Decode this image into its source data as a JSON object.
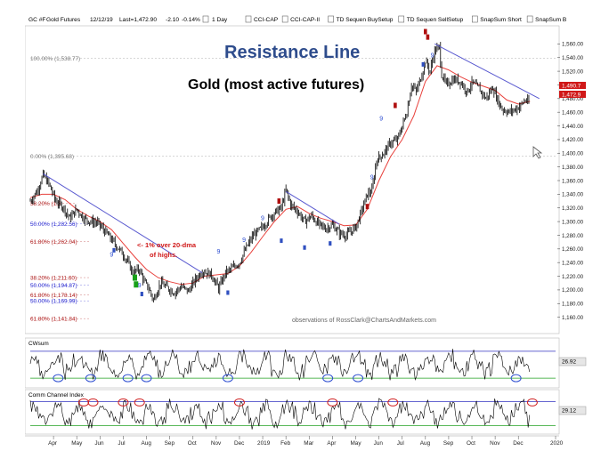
{
  "header": {
    "symbol": "GC #F",
    "name": "Gold Futures",
    "date": "12/12/19",
    "last": "Last=1,472.90",
    "change": "-2.10",
    "change_pct": "-0.14%",
    "interval": "1 Day",
    "studies": [
      "CCI-CAP",
      "CCI-CAP-II",
      "TD Sequen BuySetup",
      "TD Sequen SellSetup",
      "SnapSum Short",
      "SnapSum B"
    ]
  },
  "colors": {
    "price": "#000000",
    "ma": "#e8413c",
    "trend": "#5a5ad0",
    "fib": "#b02020",
    "fib_blue": "#2a2ad0",
    "title": "#2e4c8c",
    "osc": "#000000",
    "band": "#3030c0",
    "green_line": "#20a020",
    "circle_blue": "#2a4bd0",
    "circle_red": "#d02020",
    "sell_marker": "#b01010",
    "buy_marker": "#3050c0",
    "green_marker": "#18a018"
  },
  "chart_data": {
    "type": "candlestick",
    "title": "Resistance Line",
    "subtitle": "Gold (most active futures)",
    "annotation": "<- 1% over 20-dma of highs.",
    "watermark": "observations of RossClark@ChartsAndMarkets.com",
    "ylim": [
      1140,
      1580
    ],
    "y_ticks": [
      1160,
      1180,
      1200,
      1220,
      1240,
      1260,
      1280,
      1300,
      1320,
      1340,
      1360,
      1380,
      1400,
      1420,
      1440,
      1460,
      1480,
      1500,
      1520,
      1540,
      1560
    ],
    "price_flags": [
      {
        "value": "1,490.7",
        "color": "#d01818"
      },
      {
        "value": "1,472.9",
        "color": "#d01818"
      }
    ],
    "x_labels": [
      "Apr",
      "May",
      "Jun",
      "Jul",
      "Aug",
      "Sep",
      "Oct",
      "Nov",
      "Dec",
      "2019",
      "Feb",
      "Mar",
      "Apr",
      "May",
      "Jun",
      "Jul",
      "Aug",
      "Sep",
      "Oct",
      "Nov",
      "Dec",
      "2020"
    ],
    "x_label_months": [
      1,
      2,
      3,
      4,
      5,
      6,
      7,
      8,
      9,
      10,
      11,
      12,
      13,
      14,
      15,
      16,
      17,
      18,
      19,
      20,
      21,
      22.6
    ],
    "price_keypoints": [
      [
        0.0,
        1330
      ],
      [
        0.3,
        1345
      ],
      [
        0.55,
        1368
      ],
      [
        0.8,
        1355
      ],
      [
        1.1,
        1330
      ],
      [
        1.4,
        1322
      ],
      [
        1.7,
        1305
      ],
      [
        2.0,
        1318
      ],
      [
        2.3,
        1305
      ],
      [
        2.6,
        1300
      ],
      [
        2.9,
        1298
      ],
      [
        3.3,
        1282
      ],
      [
        3.7,
        1265
      ],
      [
        4.0,
        1252
      ],
      [
        4.2,
        1240
      ],
      [
        4.4,
        1226
      ],
      [
        4.7,
        1230
      ],
      [
        4.9,
        1212
      ],
      [
        5.1,
        1202
      ],
      [
        5.3,
        1185
      ],
      [
        5.6,
        1210
      ],
      [
        5.9,
        1203
      ],
      [
        6.2,
        1196
      ],
      [
        6.5,
        1205
      ],
      [
        6.8,
        1198
      ],
      [
        7.1,
        1215
      ],
      [
        7.4,
        1228
      ],
      [
        7.8,
        1222
      ],
      [
        8.1,
        1202
      ],
      [
        8.4,
        1225
      ],
      [
        8.7,
        1232
      ],
      [
        9.0,
        1240
      ],
      [
        9.3,
        1262
      ],
      [
        9.6,
        1280
      ],
      [
        10.0,
        1292
      ],
      [
        10.4,
        1310
      ],
      [
        10.8,
        1320
      ],
      [
        11.0,
        1346
      ],
      [
        11.2,
        1325
      ],
      [
        11.5,
        1315
      ],
      [
        11.8,
        1300
      ],
      [
        12.1,
        1308
      ],
      [
        12.4,
        1296
      ],
      [
        12.7,
        1290
      ],
      [
        13.0,
        1295
      ],
      [
        13.3,
        1283
      ],
      [
        13.6,
        1280
      ],
      [
        14.0,
        1292
      ],
      [
        14.2,
        1310
      ],
      [
        14.5,
        1340
      ],
      [
        14.7,
        1345
      ],
      [
        14.9,
        1390
      ],
      [
        15.2,
        1400
      ],
      [
        15.5,
        1415
      ],
      [
        15.8,
        1420
      ],
      [
        16.0,
        1440
      ],
      [
        16.2,
        1460
      ],
      [
        16.4,
        1500
      ],
      [
        16.6,
        1490
      ],
      [
        16.8,
        1510
      ],
      [
        17.0,
        1535
      ],
      [
        17.2,
        1520
      ],
      [
        17.4,
        1550
      ],
      [
        17.6,
        1555
      ],
      [
        17.7,
        1515
      ],
      [
        17.9,
        1500
      ],
      [
        18.2,
        1508
      ],
      [
        18.5,
        1505
      ],
      [
        18.8,
        1490
      ],
      [
        19.0,
        1503
      ],
      [
        19.3,
        1495
      ],
      [
        19.6,
        1480
      ],
      [
        19.9,
        1496
      ],
      [
        20.1,
        1478
      ],
      [
        20.3,
        1465
      ],
      [
        20.6,
        1460
      ],
      [
        20.9,
        1465
      ],
      [
        21.1,
        1470
      ],
      [
        21.3,
        1478
      ],
      [
        21.5,
        1472
      ]
    ],
    "ma_keypoints": [
      [
        0.0,
        1335
      ],
      [
        0.5,
        1340
      ],
      [
        1.0,
        1340
      ],
      [
        1.5,
        1332
      ],
      [
        2.0,
        1318
      ],
      [
        2.5,
        1308
      ],
      [
        3.0,
        1300
      ],
      [
        3.5,
        1288
      ],
      [
        4.0,
        1268
      ],
      [
        4.5,
        1248
      ],
      [
        5.0,
        1230
      ],
      [
        5.5,
        1218
      ],
      [
        6.0,
        1212
      ],
      [
        6.5,
        1208
      ],
      [
        7.0,
        1210
      ],
      [
        7.5,
        1220
      ],
      [
        8.0,
        1222
      ],
      [
        8.5,
        1224
      ],
      [
        9.0,
        1235
      ],
      [
        9.5,
        1255
      ],
      [
        10.0,
        1278
      ],
      [
        10.5,
        1300
      ],
      [
        11.0,
        1318
      ],
      [
        11.5,
        1322
      ],
      [
        12.0,
        1312
      ],
      [
        12.5,
        1305
      ],
      [
        13.0,
        1300
      ],
      [
        13.5,
        1294
      ],
      [
        14.0,
        1295
      ],
      [
        14.5,
        1318
      ],
      [
        15.0,
        1360
      ],
      [
        15.5,
        1395
      ],
      [
        16.0,
        1420
      ],
      [
        16.5,
        1455
      ],
      [
        17.0,
        1505
      ],
      [
        17.5,
        1528
      ],
      [
        18.0,
        1522
      ],
      [
        18.5,
        1512
      ],
      [
        19.0,
        1504
      ],
      [
        19.5,
        1498
      ],
      [
        20.0,
        1492
      ],
      [
        20.5,
        1478
      ],
      [
        21.0,
        1472
      ],
      [
        21.5,
        1476
      ]
    ],
    "resistance_lines": [
      {
        "from": [
          0.55,
          1370
        ],
        "to": [
          7.4,
          1225
        ]
      },
      {
        "from": [
          11.0,
          1344
        ],
        "to": [
          13.3,
          1296
        ]
      },
      {
        "from": [
          17.4,
          1560
        ],
        "to": [
          21.9,
          1480
        ]
      }
    ],
    "fib_levels": [
      {
        "label": "100.00% (1,538.77)",
        "value": 1538.77,
        "color": "#777777",
        "x0": 0,
        "x1": 22.6
      },
      {
        "label": "0.00% (1,395.68)",
        "value": 1395.68,
        "color": "#777777",
        "x0": 0,
        "x1": 22.6
      },
      {
        "label": "38.20% (1,3",
        "value": 1327,
        "color": "#b02020",
        "x0": 0,
        "x1": 2.0
      },
      {
        "label": "50.00% (1,282.56)",
        "value": 1297,
        "color": "#2a2ad0",
        "x0": 0,
        "x1": 2.6
      },
      {
        "label": "61.80% (1,262.04)",
        "value": 1271,
        "color": "#b02020",
        "x0": 0,
        "x1": 2.6
      },
      {
        "label": "38.20% (1,211.60)",
        "value": 1218,
        "color": "#b02020",
        "x0": 0,
        "x1": 2.6
      },
      {
        "label": "50.00% (1,194.87)",
        "value": 1207,
        "color": "#2a2ad0",
        "x0": 0,
        "x1": 2.6
      },
      {
        "label": "61.80% (1,178.14)",
        "value": 1193,
        "color": "#b02020",
        "x0": 0,
        "x1": 2.6
      },
      {
        "label": "50.00% (1,169.99)",
        "value": 1184,
        "color": "#2a2ad0",
        "x0": 0,
        "x1": 2.6
      },
      {
        "label": "61.80% (1,141.84)",
        "value": 1158,
        "color": "#b02020",
        "x0": 0,
        "x1": 2.6
      }
    ],
    "sell_markers": [
      [
        10.7,
        1330
      ],
      [
        14.5,
        1322
      ],
      [
        15.7,
        1470
      ],
      [
        17.0,
        1578
      ],
      [
        17.1,
        1570
      ]
    ],
    "buy_markers": [
      [
        3.6,
        1258
      ],
      [
        4.8,
        1194
      ],
      [
        8.5,
        1196
      ],
      [
        10.8,
        1272
      ],
      [
        11.8,
        1262
      ],
      [
        12.9,
        1268
      ],
      [
        16.9,
        1530
      ]
    ],
    "green_markers": [
      [
        4.5,
        1218
      ],
      [
        4.55,
        1208
      ]
    ],
    "nine_labels": [
      {
        "x": 3.5,
        "y": 1249,
        "color": "#2a4bd0"
      },
      {
        "x": 4.7,
        "y": 1204,
        "color": "#2a4bd0"
      },
      {
        "x": 8.1,
        "y": 1253,
        "color": "#2a4bd0"
      },
      {
        "x": 9.2,
        "y": 1270,
        "color": "#2a4bd0"
      },
      {
        "x": 10.0,
        "y": 1302,
        "color": "#2a4bd0"
      },
      {
        "x": 14.7,
        "y": 1362,
        "color": "#2a4bd0"
      },
      {
        "x": 15.1,
        "y": 1448,
        "color": "#2a4bd0"
      },
      {
        "x": 17.3,
        "y": 1540,
        "color": "#2a4bd0"
      }
    ],
    "panels": [
      {
        "name": "CWsum",
        "last": "26.92",
        "seed": 3,
        "amp": 0.9,
        "circles": [
          {
            "x": 1.2,
            "color": "#2a4bd0"
          },
          {
            "x": 2.6,
            "color": "#2a4bd0"
          },
          {
            "x": 4.2,
            "color": "#2a4bd0"
          },
          {
            "x": 5.0,
            "color": "#2a4bd0"
          },
          {
            "x": 8.5,
            "color": "#2a4bd0"
          },
          {
            "x": 12.8,
            "color": "#2a4bd0"
          },
          {
            "x": 14.1,
            "color": "#2a4bd0"
          },
          {
            "x": 20.9,
            "color": "#2a4bd0"
          }
        ]
      },
      {
        "name": "Comm Channel Index",
        "last": "29.12",
        "seed": 11,
        "amp": 1.0,
        "circles": [
          {
            "x": 2.3,
            "color": "#d02020"
          },
          {
            "x": 2.7,
            "color": "#d02020"
          },
          {
            "x": 4.0,
            "color": "#d02020"
          },
          {
            "x": 4.7,
            "color": "#d02020"
          },
          {
            "x": 9.0,
            "color": "#d02020"
          },
          {
            "x": 13.0,
            "color": "#d02020"
          },
          {
            "x": 15.6,
            "color": "#d02020"
          },
          {
            "x": 21.6,
            "color": "#d02020"
          }
        ]
      }
    ]
  }
}
